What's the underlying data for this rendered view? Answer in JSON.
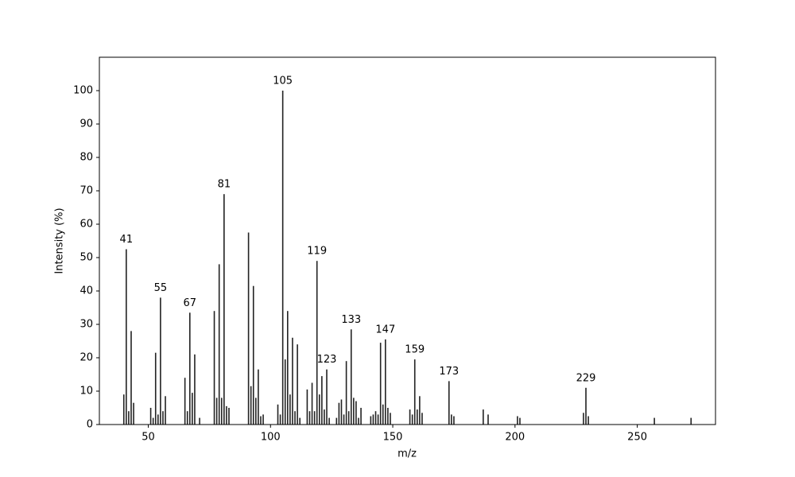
{
  "chart_data": {
    "type": "stem",
    "x": [
      40,
      41,
      42,
      43,
      44,
      51,
      52,
      53,
      54,
      55,
      56,
      57,
      65,
      66,
      67,
      68,
      69,
      71,
      77,
      78,
      79,
      80,
      81,
      82,
      83,
      91,
      92,
      93,
      94,
      95,
      96,
      97,
      103,
      104,
      105,
      106,
      107,
      108,
      109,
      110,
      111,
      112,
      115,
      116,
      117,
      118,
      119,
      120,
      121,
      122,
      123,
      124,
      127,
      128,
      129,
      130,
      131,
      132,
      133,
      134,
      135,
      136,
      137,
      141,
      142,
      143,
      144,
      145,
      146,
      147,
      148,
      149,
      157,
      158,
      159,
      160,
      161,
      162,
      173,
      174,
      175,
      187,
      189,
      201,
      202,
      228,
      229,
      230,
      257,
      272
    ],
    "values": [
      9,
      52.5,
      4,
      28,
      6.5,
      5,
      2,
      21.5,
      3,
      38,
      4,
      8.5,
      14,
      4,
      33.5,
      9.5,
      21,
      2,
      34,
      8,
      48,
      8,
      69,
      5.5,
      5,
      57.5,
      11.5,
      41.5,
      8,
      16.5,
      2.5,
      3,
      6,
      3,
      100,
      19.5,
      34,
      9,
      26,
      4,
      24,
      2,
      10.5,
      4,
      12.5,
      4,
      49,
      9,
      14.5,
      4.5,
      16.5,
      2,
      2,
      6.5,
      7.5,
      3,
      19,
      4,
      28.5,
      8,
      7,
      2,
      5,
      2.5,
      3,
      4,
      3,
      24.5,
      6,
      25.5,
      5,
      3.5,
      4.5,
      3,
      19.5,
      4.5,
      8.5,
      3.5,
      13,
      3,
      2.5,
      4.5,
      3,
      2.5,
      2,
      3.5,
      11,
      2.5,
      2,
      2
    ],
    "labeled_peaks": [
      41,
      55,
      67,
      81,
      105,
      119,
      123,
      133,
      147,
      159,
      173,
      229
    ],
    "color": "#222222",
    "xlabel": "m/z",
    "ylabel": "Intensity (%)",
    "xlim": [
      30,
      282
    ],
    "ylim": [
      0,
      110
    ],
    "xticks": [
      50,
      100,
      150,
      200,
      250
    ],
    "yticks": [
      0,
      10,
      20,
      30,
      40,
      50,
      60,
      70,
      80,
      90,
      100
    ]
  }
}
